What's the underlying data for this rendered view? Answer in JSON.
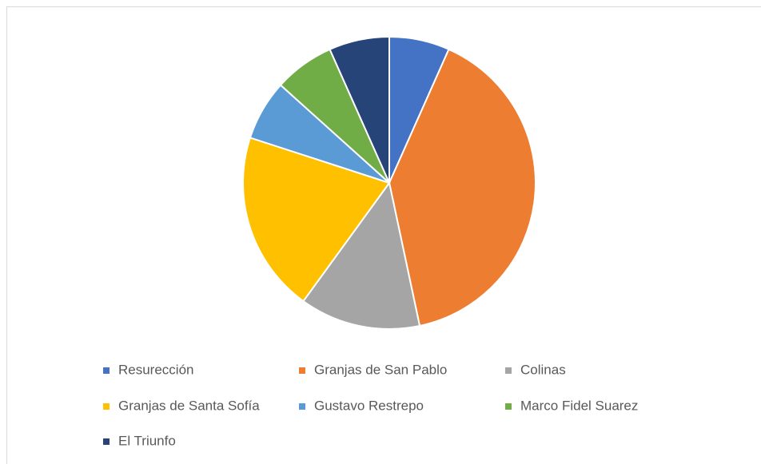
{
  "chart_data": {
    "type": "pie",
    "categories": [
      "Resurección",
      "Granjas de San Pablo",
      "Colinas",
      "Granjas de Santa Sofía",
      "Gustavo Restrepo",
      "Marco Fidel Suarez",
      "El Triunfo"
    ],
    "values": [
      1,
      6,
      2,
      3,
      1,
      1,
      1
    ],
    "colors": [
      "#4472c4",
      "#ed7d31",
      "#a5a5a5",
      "#ffc000",
      "#5b9bd5",
      "#70ad47",
      "#264478"
    ],
    "legend": "bottom"
  }
}
